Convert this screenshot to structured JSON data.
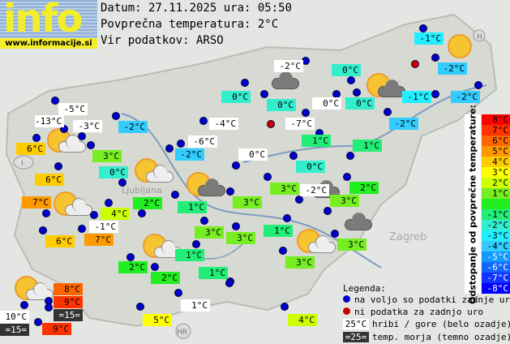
{
  "header": {
    "logo_text": "info",
    "logo_url": "www.informacije.si",
    "date_line": "Datum: 27.11.2025 ura: 05:50",
    "avg_line": "Povprečna temperatura: 2°C",
    "source_line": "Vir podatkov: ARSO"
  },
  "stations": [
    {
      "t": "-5°C",
      "bg": "#ffffff"
    },
    {
      "t": "-13°C",
      "bg": "#ffffff"
    },
    {
      "t": "-3°C",
      "bg": "#ffffff"
    },
    {
      "t": "-2°C",
      "bg": "#33ccff"
    },
    {
      "t": "6°C",
      "bg": "#ffcc00"
    },
    {
      "t": "3°C",
      "bg": "#77ee22"
    },
    {
      "t": "0°C",
      "bg": "#33eecc"
    },
    {
      "t": "6°C",
      "bg": "#ffcc00"
    },
    {
      "t": "7°C",
      "bg": "#ff9900"
    },
    {
      "t": "-1°C",
      "bg": "#ffffff"
    },
    {
      "t": "4°C",
      "bg": "#ccff00"
    },
    {
      "t": "6°C",
      "bg": "#ffcc00"
    },
    {
      "t": "7°C",
      "bg": "#ff9900"
    },
    {
      "t": "-4°C",
      "bg": "#ffffff"
    },
    {
      "t": "-6°C",
      "bg": "#ffffff"
    },
    {
      "t": "-2°C",
      "bg": "#33ccff"
    },
    {
      "t": "0°C",
      "bg": "#ffffff"
    },
    {
      "t": "2°C",
      "bg": "#22ee22"
    },
    {
      "t": "1°C",
      "bg": "#22ee77"
    },
    {
      "t": "3°C",
      "bg": "#77ee22"
    },
    {
      "t": "3°C",
      "bg": "#77ee22"
    },
    {
      "t": "3°C",
      "bg": "#77ee22"
    },
    {
      "t": "1°C",
      "bg": "#22ee77"
    },
    {
      "t": "2°C",
      "bg": "#22ee22"
    },
    {
      "t": "2°C",
      "bg": "#22ee22"
    },
    {
      "t": "1°C",
      "bg": "#22ee77"
    },
    {
      "t": "5°C",
      "bg": "#ffff00"
    },
    {
      "t": "1°C",
      "bg": "#ffffff"
    },
    {
      "t": "-2°C",
      "bg": "#ffffff"
    },
    {
      "t": "0°C",
      "bg": "#33eecc"
    },
    {
      "t": "0°C",
      "bg": "#33eecc"
    },
    {
      "t": "0°C",
      "bg": "#ffffff"
    },
    {
      "t": "0°C",
      "bg": "#33eecc"
    },
    {
      "t": "0°C",
      "bg": "#33eecc"
    },
    {
      "t": "-7°C",
      "bg": "#ffffff"
    },
    {
      "t": "1°C",
      "bg": "#22ee77"
    },
    {
      "t": "1°C",
      "bg": "#22ee77"
    },
    {
      "t": "0°C",
      "bg": "#33eecc"
    },
    {
      "t": "-1°C",
      "bg": "#22eeff"
    },
    {
      "t": "-2°C",
      "bg": "#33ccff"
    },
    {
      "t": "-1°C",
      "bg": "#22eeff"
    },
    {
      "t": "-2°C",
      "bg": "#33ccff"
    },
    {
      "t": "-2°C",
      "bg": "#33ccff"
    },
    {
      "t": "3°C",
      "bg": "#77ee22"
    },
    {
      "t": "-2°C",
      "bg": "#ffffff"
    },
    {
      "t": "2°C",
      "bg": "#22ee22"
    },
    {
      "t": "3°C",
      "bg": "#77ee22"
    },
    {
      "t": "1°C",
      "bg": "#22ee77"
    },
    {
      "t": "3°C",
      "bg": "#77ee22"
    },
    {
      "t": "3°C",
      "bg": "#77ee22"
    },
    {
      "t": "4°C",
      "bg": "#ccff00"
    },
    {
      "t": "8°C",
      "bg": "#ff6600"
    },
    {
      "t": "9°C",
      "bg": "#ff3300"
    },
    {
      "t": "=15=",
      "bg": "#333333"
    },
    {
      "t": "10°C",
      "bg": "#ffffff"
    },
    {
      "t": "=15=",
      "bg": "#333333"
    },
    {
      "t": "9°C",
      "bg": "#ff3300"
    }
  ],
  "scale": {
    "title": "Odstopanje od povprečne temperature:",
    "steps": [
      {
        "t": "8°C",
        "c": "#ff0000"
      },
      {
        "t": "7°C",
        "c": "#ff3300"
      },
      {
        "t": "6°C",
        "c": "#ff6600"
      },
      {
        "t": "5°C",
        "c": "#ff9900"
      },
      {
        "t": "4°C",
        "c": "#ffcc00"
      },
      {
        "t": "3°C",
        "c": "#ffff00"
      },
      {
        "t": "2°C",
        "c": "#ccff00"
      },
      {
        "t": "1°C",
        "c": "#77ee22"
      },
      {
        "t": "",
        "c": "#22ee22"
      },
      {
        "t": "-1°C",
        "c": "#22ee77"
      },
      {
        "t": "-2°C",
        "c": "#33eecc"
      },
      {
        "t": "-3°C",
        "c": "#22eeff"
      },
      {
        "t": "-4°C",
        "c": "#33ccff"
      },
      {
        "t": "-5°C",
        "c": "#1199ff"
      },
      {
        "t": "-6°C",
        "c": "#1166ff"
      },
      {
        "t": "-7°C",
        "c": "#1133ff"
      },
      {
        "t": "-8°C",
        "c": "#0000ff"
      }
    ]
  },
  "legend": {
    "title": "Legenda:",
    "blue": "na voljo so podatki zadnje ure",
    "red": "ni podatka za zadnjo uro",
    "white_sample": "25°C",
    "white_text": "hribi / gore (belo ozadje)",
    "dark_sample": "=25=",
    "dark_text": "temp. morja (temno ozadje)"
  },
  "map_labels": {
    "ljubljana": "Ljubljana",
    "zagreb": "Zagreb",
    "hr": "HR",
    "h": "H",
    "i": "I"
  }
}
